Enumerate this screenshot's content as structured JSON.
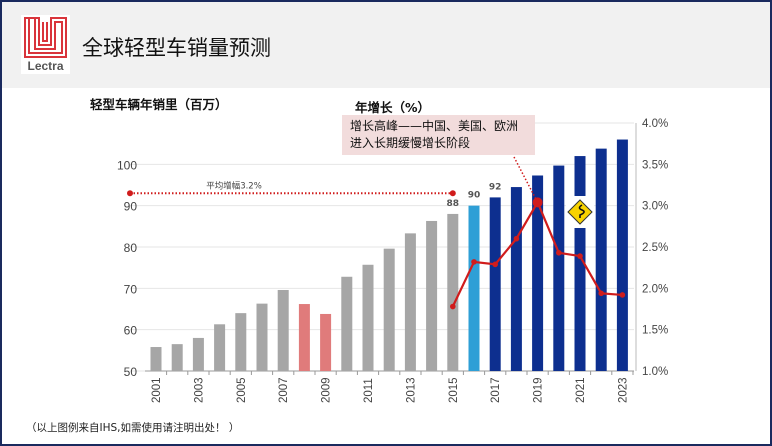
{
  "header": {
    "title": "全球轻型车销量预测",
    "logo_text": "Lectra"
  },
  "chart_data": {
    "type": "bar",
    "left_axis_label": "轻型车辆年销里（百万）",
    "right_axis_label": "年增长（%）",
    "categories": [
      "2001",
      "2002",
      "2003",
      "2004",
      "2005",
      "2006",
      "2007",
      "2008",
      "2009",
      "2010",
      "2011",
      "2012",
      "2013",
      "2014",
      "2015",
      "2016",
      "2017",
      "2018",
      "2019",
      "2020",
      "2021",
      "2022",
      "2023"
    ],
    "x_tick_labels": [
      "2001",
      "2003",
      "2005",
      "2007",
      "2009",
      "2011",
      "2013",
      "2015",
      "2017",
      "2019",
      "2021",
      "2023"
    ],
    "series": [
      {
        "name": "轻型车辆年销量",
        "type": "bar",
        "axis": "left",
        "values": [
          55.8,
          56.5,
          58,
          61.3,
          64,
          66.3,
          69.6,
          66.2,
          63.8,
          72.8,
          75.7,
          79.6,
          83.3,
          86.3,
          88,
          90,
          92,
          94.5,
          97.3,
          99.7,
          102,
          103.8,
          106
        ],
        "colors": {
          "history": "#a6a6a6",
          "recession": "#e07b7b",
          "current": "#2e9fd6",
          "forecast": "#0d2f8f"
        }
      },
      {
        "name": "年增长",
        "type": "line",
        "axis": "right",
        "color": "#d01c1c",
        "x": [
          "2015",
          "2016",
          "2017",
          "2018",
          "2019",
          "2020",
          "2021",
          "2022",
          "2023"
        ],
        "values": [
          1.78,
          2.32,
          2.29,
          2.6,
          3.04,
          2.43,
          2.39,
          1.94,
          1.92
        ]
      }
    ],
    "left_ylim": [
      50,
      110
    ],
    "left_ticks": [
      "50",
      "60",
      "70",
      "80",
      "90",
      "100"
    ],
    "right_ylim": [
      1.0,
      4.0
    ],
    "right_ticks": [
      "1.0%",
      "1.5%",
      "2.0%",
      "2.5%",
      "3.0%",
      "3.5%",
      "4.0%"
    ],
    "data_labels": [
      {
        "x": "2015",
        "text": "88"
      },
      {
        "x": "2016",
        "text": "90"
      },
      {
        "x": "2017",
        "text": "92"
      }
    ],
    "average_line": {
      "label": "平均增幅3.2%",
      "from": "2001",
      "to": "2015",
      "value": 3.15
    },
    "annotation": {
      "line1": "增长高峰——中国、美国、欧洲",
      "line2": "进入长期缓慢增长阶段",
      "points_to": "2019"
    },
    "grid": true
  },
  "footnote": "（以上图例来自IHS,如需使用请注明出处！ ）"
}
